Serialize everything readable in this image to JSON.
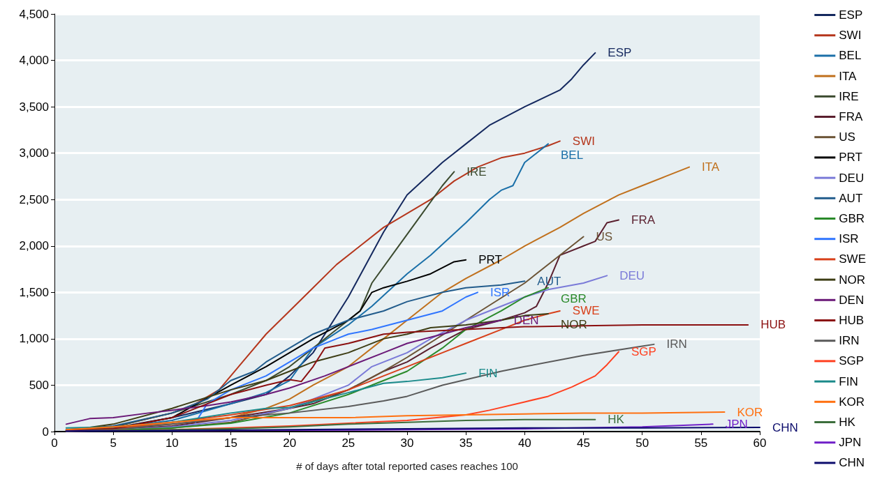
{
  "chart_data": {
    "type": "line",
    "xlabel": "# of days after total reported cases reaches 100",
    "xlim": [
      0,
      60
    ],
    "xticks": [
      0,
      5,
      10,
      15,
      20,
      25,
      30,
      35,
      40,
      45,
      50,
      55,
      60
    ],
    "ylim": [
      0,
      4500
    ],
    "yticks": [
      0,
      500,
      {
        "value": 1000,
        "label": "1,000"
      },
      {
        "value": 1500,
        "label": "1,500"
      },
      {
        "value": 2000,
        "label": "2,000"
      },
      {
        "value": 2500,
        "label": "2,500"
      },
      {
        "value": 3000,
        "label": "3,000"
      },
      {
        "value": 3500,
        "label": "3,500"
      },
      {
        "value": 4000,
        "label": "4,000"
      },
      {
        "value": 4500,
        "label": "4,500"
      }
    ],
    "grid": "y",
    "legend": "right",
    "marker": "none",
    "line_style": "solid",
    "series": [
      {
        "name": "ESP",
        "color": "#14285e",
        "x": [
          1,
          5,
          10,
          15,
          18,
          20,
          22,
          25,
          28,
          30,
          33,
          35,
          37,
          40,
          42,
          43,
          44,
          45,
          46
        ],
        "values": [
          20,
          40,
          150,
          300,
          400,
          600,
          850,
          1450,
          2150,
          2550,
          2900,
          3100,
          3300,
          3500,
          3620,
          3680,
          3800,
          3950,
          4080
        ]
      },
      {
        "name": "SWI",
        "color": "#b5361c",
        "x": [
          1,
          5,
          10,
          12,
          14,
          16,
          18,
          20,
          22,
          24,
          26,
          28,
          30,
          32,
          34,
          36,
          38,
          40,
          42,
          43
        ],
        "values": [
          20,
          50,
          200,
          300,
          450,
          750,
          1050,
          1300,
          1550,
          1800,
          2000,
          2200,
          2350,
          2500,
          2700,
          2850,
          2950,
          3000,
          3080,
          3130
        ]
      },
      {
        "name": "BEL",
        "color": "#1a6fa8",
        "x": [
          1,
          5,
          10,
          15,
          18,
          20,
          22,
          25,
          27,
          30,
          32,
          35,
          37,
          38,
          39,
          40,
          41,
          42
        ],
        "values": [
          20,
          40,
          120,
          300,
          420,
          550,
          900,
          1150,
          1350,
          1700,
          1900,
          2250,
          2500,
          2600,
          2650,
          2900,
          3000,
          3100
        ]
      },
      {
        "name": "ITA",
        "color": "#c0701c",
        "x": [
          1,
          5,
          10,
          15,
          18,
          20,
          22,
          25,
          28,
          30,
          33,
          35,
          38,
          40,
          43,
          45,
          48,
          50,
          52,
          54
        ],
        "values": [
          10,
          30,
          80,
          150,
          250,
          350,
          500,
          700,
          1000,
          1200,
          1500,
          1650,
          1850,
          2000,
          2200,
          2350,
          2550,
          2650,
          2750,
          2850
        ]
      },
      {
        "name": "IRE",
        "color": "#3b4a2e",
        "x": [
          1,
          5,
          10,
          15,
          18,
          20,
          22,
          24,
          26,
          27,
          29,
          31,
          33,
          34
        ],
        "values": [
          10,
          50,
          200,
          400,
          550,
          700,
          900,
          1100,
          1300,
          1600,
          1950,
          2300,
          2650,
          2800
        ]
      },
      {
        "name": "FRA",
        "color": "#5a1f2e",
        "x": [
          1,
          5,
          10,
          15,
          20,
          22,
          25,
          28,
          30,
          32,
          35,
          38,
          40,
          41,
          42,
          43,
          45,
          46,
          47,
          48
        ],
        "values": [
          10,
          20,
          60,
          150,
          250,
          300,
          450,
          650,
          750,
          900,
          1100,
          1200,
          1280,
          1350,
          1600,
          1900,
          2000,
          2050,
          2250,
          2280
        ]
      },
      {
        "name": "US",
        "color": "#6b5335",
        "x": [
          1,
          5,
          10,
          15,
          20,
          25,
          28,
          30,
          35,
          40,
          45
        ],
        "values": [
          5,
          10,
          40,
          100,
          250,
          450,
          650,
          800,
          1200,
          1600,
          2100
        ]
      },
      {
        "name": "PRT",
        "color": "#000000",
        "x": [
          1,
          5,
          10,
          15,
          18,
          20,
          22,
          25,
          26,
          27,
          28,
          30,
          32,
          34,
          35
        ],
        "values": [
          10,
          30,
          150,
          500,
          700,
          850,
          1000,
          1200,
          1300,
          1500,
          1550,
          1620,
          1700,
          1830,
          1850
        ]
      },
      {
        "name": "DEU",
        "color": "#7a7ad8",
        "x": [
          1,
          5,
          10,
          15,
          20,
          25,
          27,
          30,
          32,
          35,
          38,
          40,
          42,
          45,
          47
        ],
        "values": [
          5,
          15,
          50,
          120,
          250,
          500,
          700,
          850,
          1000,
          1200,
          1350,
          1450,
          1530,
          1600,
          1680
        ]
      },
      {
        "name": "AUT",
        "color": "#225c8c",
        "x": [
          1,
          5,
          10,
          13,
          15,
          17,
          18,
          20,
          22,
          25,
          28,
          30,
          33,
          35,
          38,
          40
        ],
        "values": [
          20,
          60,
          200,
          350,
          550,
          650,
          750,
          900,
          1050,
          1200,
          1300,
          1400,
          1500,
          1550,
          1580,
          1620
        ]
      },
      {
        "name": "GBR",
        "color": "#2a8a2a",
        "x": [
          1,
          5,
          10,
          15,
          20,
          25,
          28,
          30,
          33,
          35,
          38,
          40,
          42
        ],
        "values": [
          5,
          15,
          40,
          90,
          200,
          400,
          550,
          650,
          900,
          1100,
          1300,
          1450,
          1550
        ]
      },
      {
        "name": "ISR",
        "color": "#2f75ff",
        "x": [
          12,
          13,
          15,
          18,
          20,
          22,
          24,
          25,
          27,
          30,
          33,
          35,
          36
        ],
        "values": [
          100,
          300,
          450,
          600,
          750,
          900,
          1000,
          1050,
          1100,
          1200,
          1300,
          1450,
          1500
        ]
      },
      {
        "name": "SWE",
        "color": "#d8401a",
        "x": [
          1,
          5,
          10,
          15,
          20,
          23,
          25,
          28,
          30,
          33,
          35,
          38,
          40,
          42,
          43
        ],
        "values": [
          10,
          30,
          100,
          180,
          280,
          380,
          450,
          600,
          700,
          850,
          950,
          1100,
          1200,
          1270,
          1300
        ]
      },
      {
        "name": "NOR",
        "color": "#3d3d14",
        "x": [
          1,
          5,
          10,
          15,
          18,
          20,
          22,
          25,
          28,
          30,
          32,
          35,
          38,
          40,
          42
        ],
        "values": [
          10,
          80,
          250,
          450,
          550,
          650,
          750,
          850,
          1000,
          1050,
          1120,
          1150,
          1200,
          1250,
          1270
        ]
      },
      {
        "name": "DEN",
        "color": "#6b1a78",
        "x": [
          1,
          3,
          5,
          8,
          10,
          13,
          15,
          18,
          20,
          23,
          25,
          28,
          30,
          33,
          35,
          38
        ],
        "values": [
          80,
          140,
          150,
          200,
          230,
          280,
          320,
          400,
          470,
          600,
          700,
          850,
          950,
          1050,
          1120,
          1200
        ]
      },
      {
        "name": "HUB",
        "color": "#8b1010",
        "x": [
          1,
          5,
          10,
          13,
          15,
          18,
          20,
          21,
          22,
          23,
          25,
          28,
          30,
          35,
          40,
          45,
          50,
          55,
          59
        ],
        "values": [
          10,
          30,
          150,
          300,
          400,
          500,
          560,
          540,
          700,
          900,
          950,
          1050,
          1070,
          1100,
          1130,
          1140,
          1150,
          1150,
          1150
        ]
      },
      {
        "name": "IRN",
        "color": "#5a5a5a",
        "x": [
          1,
          5,
          10,
          15,
          20,
          25,
          28,
          30,
          33,
          35,
          38,
          40,
          45,
          50,
          51
        ],
        "values": [
          5,
          20,
          80,
          150,
          200,
          270,
          330,
          380,
          500,
          560,
          650,
          700,
          820,
          920,
          940
        ]
      },
      {
        "name": "SGP",
        "color": "#ff4020",
        "x": [
          1,
          5,
          10,
          15,
          20,
          25,
          30,
          35,
          37,
          40,
          42,
          44,
          46,
          47,
          48
        ],
        "values": [
          5,
          10,
          20,
          40,
          60,
          90,
          120,
          180,
          230,
          320,
          380,
          480,
          600,
          720,
          860
        ]
      },
      {
        "name": "FIN",
        "color": "#1a8a8a",
        "x": [
          1,
          5,
          10,
          15,
          18,
          20,
          22,
          25,
          28,
          30,
          33,
          35
        ],
        "values": [
          40,
          50,
          100,
          200,
          250,
          260,
          320,
          420,
          520,
          540,
          580,
          630
        ]
      },
      {
        "name": "KOR",
        "color": "#ff7010",
        "x": [
          1,
          5,
          10,
          15,
          20,
          25,
          30,
          35,
          40,
          45,
          50,
          57
        ],
        "values": [
          20,
          50,
          100,
          150,
          150,
          150,
          170,
          180,
          190,
          200,
          200,
          210
        ]
      },
      {
        "name": "HK",
        "color": "#3c6e3c",
        "x": [
          1,
          5,
          10,
          15,
          20,
          25,
          30,
          35,
          40,
          46
        ],
        "values": [
          5,
          10,
          20,
          30,
          50,
          80,
          100,
          120,
          130,
          130
        ]
      },
      {
        "name": "JPN",
        "color": "#7020c8",
        "x": [
          1,
          10,
          20,
          30,
          40,
          50,
          56
        ],
        "values": [
          5,
          10,
          15,
          20,
          30,
          50,
          80
        ]
      },
      {
        "name": "CHN",
        "color": "#0c0c6c",
        "x": [
          1,
          10,
          20,
          30,
          40,
          50,
          60
        ],
        "values": [
          5,
          10,
          20,
          30,
          40,
          40,
          45
        ]
      }
    ]
  }
}
